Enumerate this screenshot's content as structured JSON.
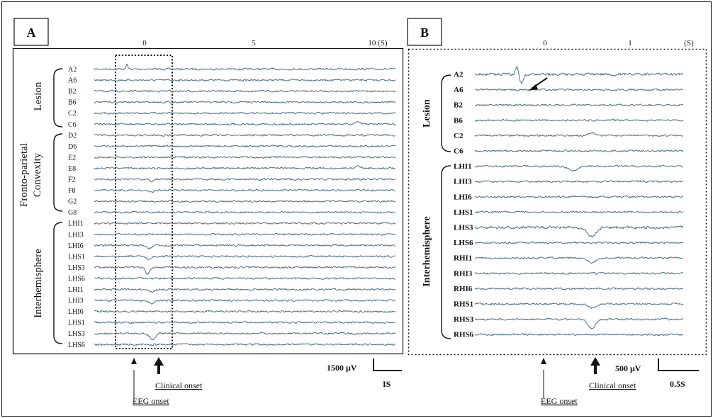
{
  "chart_data": [
    {
      "type": "line",
      "panel": "A",
      "time_ticks": [
        "0",
        "5",
        "10 (S)"
      ],
      "time_tick_values": [
        0,
        5,
        10
      ],
      "xlim": [
        -1.3,
        11.3
      ],
      "groups": [
        {
          "label": "Lesion",
          "channels": [
            "A2",
            "A6",
            "B2",
            "B6",
            "C2",
            "C6"
          ]
        },
        {
          "label": "Fronto-parietal Convexity",
          "channels": [
            "D2",
            "D6",
            "E2",
            "E8",
            "F2",
            "F8",
            "G2",
            "G8"
          ]
        },
        {
          "label": "Interhemisphere",
          "channels": [
            "LHI1",
            "LHI3",
            "LHI6",
            "LHS1",
            "LHS3",
            "LHS6",
            "LHI1",
            "LHI3",
            "LHI6",
            "LHS1",
            "LHS3",
            "LHS6"
          ]
        }
      ],
      "scale_bar": {
        "amplitude": "1500 μV",
        "time": "IS"
      },
      "annotations": {
        "eeg_onset": "EEG onset",
        "clinical_onset": "Clinical onset"
      },
      "eeg_onset_time": -0.1,
      "clinical_onset_time": 0.9
    },
    {
      "type": "line",
      "panel": "B",
      "time_ticks": [
        "0",
        "1",
        "(S)"
      ],
      "time_tick_values": [
        0,
        1,
        1.7
      ],
      "xlim": [
        -0.8,
        1.8
      ],
      "groups": [
        {
          "label": "Lesion",
          "channels": [
            "A2",
            "A6",
            "B2",
            "B6",
            "C2",
            "C6"
          ]
        },
        {
          "label": "Interhemisphere",
          "channels": [
            "LHI1",
            "LHI3",
            "LHI6",
            "LHS1",
            "LHS3",
            "LHS6",
            "RHI1",
            "RHI3",
            "RHI6",
            "RHS1",
            "RHS3",
            "RHS6"
          ]
        }
      ],
      "scale_bar": {
        "amplitude": "500 μV",
        "time": "0.5S"
      },
      "annotations": {
        "eeg_onset": "EEG onset",
        "clinical_onset": "Clinical onset"
      },
      "eeg_onset_time": -0.01,
      "clinical_onset_time": 0.55
    }
  ],
  "colors": {
    "trace": "#4b6f86",
    "frame": "#111111"
  }
}
